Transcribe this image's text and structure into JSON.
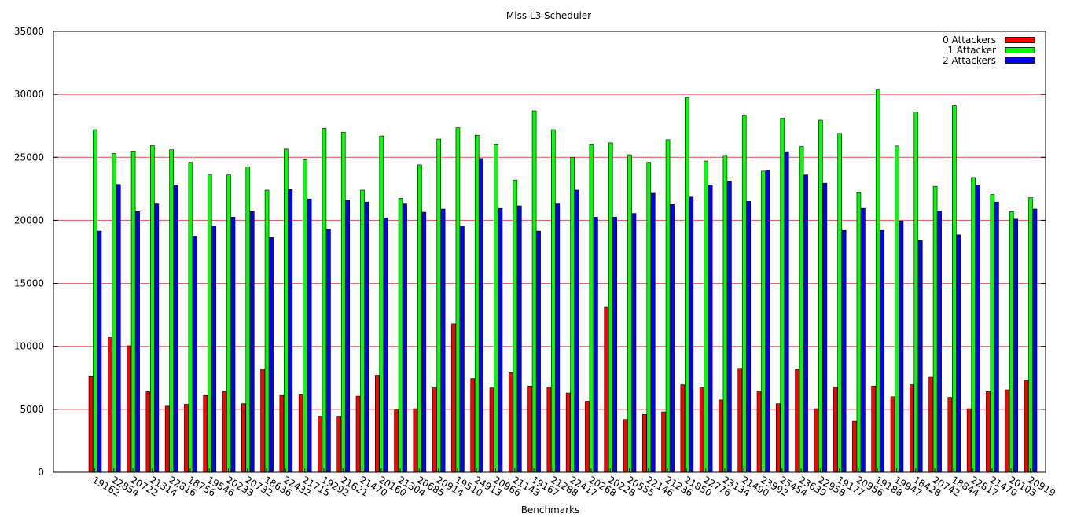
{
  "chart_data": {
    "type": "bar",
    "title": "Miss L3 Scheduler",
    "xlabel": "Benchmarks",
    "ylabel": "",
    "ylim": [
      0,
      35000
    ],
    "yticks": [
      0,
      5000,
      10000,
      15000,
      20000,
      25000,
      30000,
      35000
    ],
    "grid": "horizontal",
    "legend_position": "top-right",
    "categories": [
      "19162",
      "22854",
      "20722",
      "21314",
      "22816",
      "18756",
      "19546",
      "20233",
      "20732",
      "18636",
      "22432",
      "21715",
      "19292",
      "21621",
      "21470",
      "20160",
      "21304",
      "20685",
      "20914",
      "19510",
      "24913",
      "20966",
      "21143",
      "19167",
      "21288",
      "22417",
      "20268",
      "20228",
      "20555",
      "22146",
      "21236",
      "21850",
      "22776",
      "23134",
      "21490",
      "23992",
      "25454",
      "23639",
      "22958",
      "19177",
      "20956",
      "19188",
      "19947",
      "18428",
      "20742",
      "18844",
      "22817",
      "21470",
      "20103",
      "20919"
    ],
    "series": [
      {
        "name": "0 Attackers",
        "color": "#ff0000",
        "values": [
          7600,
          10700,
          10050,
          6400,
          5250,
          5400,
          6100,
          6400,
          5450,
          8200,
          6100,
          6150,
          4450,
          4450,
          6050,
          7700,
          4950,
          5050,
          6700,
          11800,
          7450,
          6700,
          7900,
          6850,
          6750,
          6300,
          5650,
          13100,
          4200,
          4600,
          4800,
          6950,
          6750,
          5750,
          8250,
          6450,
          5450,
          8150,
          5050,
          6750,
          4050,
          6850,
          6000,
          6950,
          7550,
          5950,
          5050,
          6400,
          6550,
          7300
        ]
      },
      {
        "name": "1 Attacker",
        "color": "#00ff00",
        "values": [
          27200,
          25300,
          25500,
          25950,
          25600,
          24600,
          23650,
          23600,
          24250,
          22400,
          25650,
          24800,
          27300,
          27000,
          22400,
          26700,
          21750,
          24400,
          26450,
          27350,
          26750,
          26050,
          23200,
          28700,
          27200,
          25000,
          26050,
          26150,
          25200,
          24600,
          26400,
          29750,
          24700,
          25150,
          28350,
          23900,
          28100,
          25850,
          27950,
          26900,
          22200,
          30400,
          25900,
          28600,
          22700,
          29100,
          23400,
          22050,
          20700,
          21800
        ]
      },
      {
        "name": "2 Attackers",
        "color": "#0000ff",
        "values": [
          19150,
          22850,
          20700,
          21300,
          22800,
          18750,
          19550,
          20250,
          20700,
          18650,
          22450,
          21700,
          19300,
          21600,
          21450,
          20200,
          21300,
          20650,
          20900,
          19500,
          24900,
          20950,
          21150,
          19150,
          21300,
          22400,
          20250,
          20250,
          20550,
          22150,
          21250,
          21850,
          22800,
          23100,
          21500,
          24000,
          25450,
          23600,
          22950,
          19200,
          20950,
          19200,
          19950,
          18400,
          20750,
          18850,
          22800,
          21450,
          20100,
          20900
        ]
      }
    ]
  }
}
